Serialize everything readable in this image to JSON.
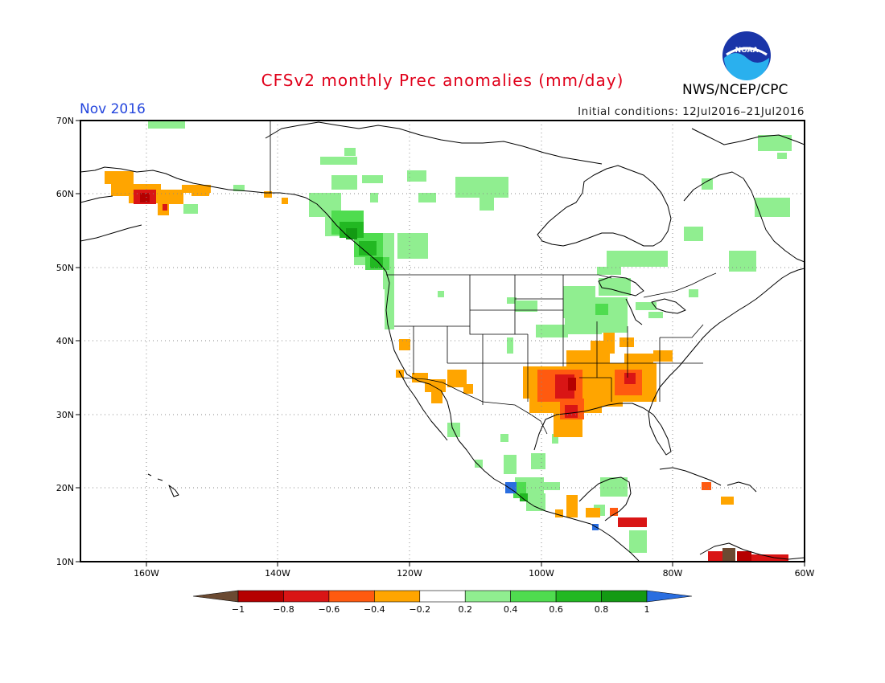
{
  "title": "CFSv2 monthly Prec anomalies (mm/day)",
  "month": "Nov 2016",
  "agency": "NWS/NCEP/CPC",
  "logo_text": "NOAA",
  "initial_conditions": "Initial conditions: 12Jul2016–21Jul2016",
  "colors": {
    "title": "#e0001a",
    "month": "#2244dd",
    "border": "#000000",
    "grid": "#888888"
  },
  "axes": {
    "lon_labels": [
      "160W",
      "140W",
      "120W",
      "100W",
      "80W",
      "60W"
    ],
    "lat_labels": [
      "70N",
      "60N",
      "50N",
      "40N",
      "30N",
      "20N",
      "10N"
    ],
    "lon_range": [
      -170,
      -60
    ],
    "lat_range": [
      10,
      70
    ],
    "grid": "dotted"
  },
  "colorbar": {
    "tick_labels": [
      "−1",
      "−0.8",
      "−0.6",
      "−0.4",
      "−0.2",
      "0.2",
      "0.4",
      "0.6",
      "0.8",
      "1"
    ],
    "bins": [
      {
        "range": "< -1",
        "color": "#6b4a32"
      },
      {
        "range": "-1 to -0.8",
        "color": "#b50000"
      },
      {
        "range": "-0.8 to -0.6",
        "color": "#d91515"
      },
      {
        "range": "-0.6 to -0.4",
        "color": "#ff5a10"
      },
      {
        "range": "-0.4 to -0.2",
        "color": "#ffa500"
      },
      {
        "range": "-0.2 to 0.2",
        "color": "#ffffff"
      },
      {
        "range": "0.2 to 0.4",
        "color": "#90ee90"
      },
      {
        "range": "0.4 to 0.6",
        "color": "#4fdc4f"
      },
      {
        "range": "0.6 to 0.8",
        "color": "#22b822"
      },
      {
        "range": "0.8 to 1",
        "color": "#139a13"
      },
      {
        "range": "> 1",
        "color": "#2a6ee0"
      }
    ]
  },
  "anomaly_regions": [
    {
      "region": "Alaska peninsula / south coast",
      "category": "-0.4 to -0.2",
      "lon": [
        -166,
        -150
      ],
      "lat": [
        58,
        63
      ]
    },
    {
      "region": "SW Alaska core",
      "category": "-0.8 to -0.6",
      "lon": [
        -162,
        -158
      ],
      "lat": [
        59,
        61
      ]
    },
    {
      "region": "Pacific Northwest coast / BC",
      "category": "0.6 to 0.8",
      "lon": [
        -131,
        -124
      ],
      "lat": [
        48,
        57
      ]
    },
    {
      "region": "Northern Canada scattered",
      "category": "0.2 to 0.4",
      "lon": [
        -125,
        -105
      ],
      "lat": [
        56,
        67
      ]
    },
    {
      "region": "Upper Midwest / Great Lakes",
      "category": "0.2 to 0.4",
      "lon": [
        -100,
        -80
      ],
      "lat": [
        38,
        46
      ]
    },
    {
      "region": "Southern Plains / Texas",
      "category": "-0.4 to -0.2",
      "lon": [
        -102,
        -86
      ],
      "lat": [
        28,
        38
      ]
    },
    {
      "region": "Texas / Louisiana core",
      "category": "-0.8 to -0.6",
      "lon": [
        -96,
        -91
      ],
      "lat": [
        30,
        35
      ]
    },
    {
      "region": "Southeast US (Tennessee / Georgia)",
      "category": "-0.4 to -0.2",
      "lon": [
        -90,
        -80
      ],
      "lat": [
        31,
        38
      ]
    },
    {
      "region": "Mexico Pacific coast",
      "category": "0.4 to 0.6",
      "lon": [
        -106,
        -100
      ],
      "lat": [
        16,
        21
      ]
    },
    {
      "region": "Central America",
      "category": "-0.8 to -0.6",
      "lon": [
        -89,
        -83
      ],
      "lat": [
        14,
        16
      ]
    },
    {
      "region": "Northern South America",
      "category": "< -1",
      "lon": [
        -72,
        -62
      ],
      "lat": [
        10,
        12
      ]
    }
  ]
}
